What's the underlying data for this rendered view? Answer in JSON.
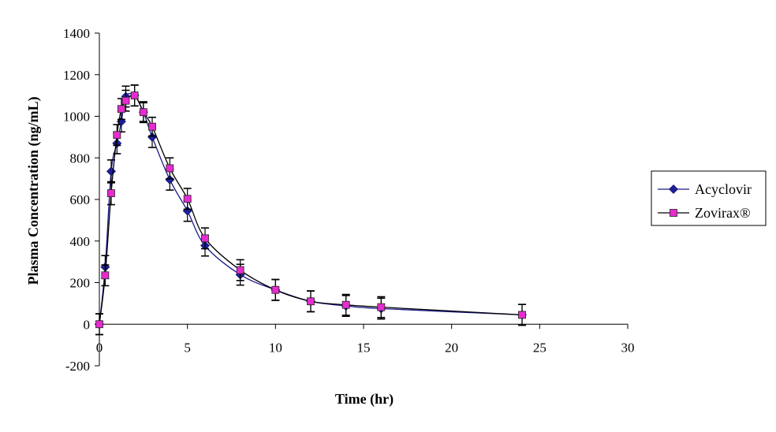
{
  "chart_data": {
    "type": "line",
    "title": "",
    "xlabel": "Time (hr)",
    "ylabel": "Plasma Concentration (ng/mL)",
    "xlim": [
      0,
      30
    ],
    "ylim": [
      -200,
      1400
    ],
    "x_ticks": [
      0,
      5,
      10,
      15,
      20,
      25,
      30
    ],
    "y_ticks": [
      -200,
      0,
      200,
      400,
      600,
      800,
      1000,
      1200,
      1400
    ],
    "grid": false,
    "legend_position": "right",
    "series": [
      {
        "name": "Acyclovir",
        "marker": "diamond",
        "color": "#1a1a8c",
        "marker_color": "#1f1f9a",
        "points": [
          {
            "x": 0,
            "y": 0,
            "err": 50
          },
          {
            "x": 0.33,
            "y": 275,
            "err": 55
          },
          {
            "x": 0.67,
            "y": 735,
            "err": 55
          },
          {
            "x": 1,
            "y": 870,
            "err": 50
          },
          {
            "x": 1.25,
            "y": 975,
            "err": 50
          },
          {
            "x": 1.5,
            "y": 1095,
            "err": 50
          },
          {
            "x": 2,
            "y": 1100,
            "err": 50
          },
          {
            "x": 2.5,
            "y": 1020,
            "err": 50
          },
          {
            "x": 3,
            "y": 900,
            "err": 50
          },
          {
            "x": 4,
            "y": 695,
            "err": 50
          },
          {
            "x": 5,
            "y": 545,
            "err": 50
          },
          {
            "x": 6,
            "y": 378,
            "err": 50
          },
          {
            "x": 8,
            "y": 238,
            "err": 50
          },
          {
            "x": 10,
            "y": 165,
            "err": 50
          },
          {
            "x": 12,
            "y": 110,
            "err": 50
          },
          {
            "x": 14,
            "y": 88,
            "err": 50
          },
          {
            "x": 16,
            "y": 75,
            "err": 50
          },
          {
            "x": 24,
            "y": 45,
            "err": 50
          }
        ]
      },
      {
        "name": "Zovirax®",
        "marker": "square",
        "color": "#000000",
        "marker_color": "#e62ccf",
        "points": [
          {
            "x": 0,
            "y": 0,
            "err": 50
          },
          {
            "x": 0.33,
            "y": 235,
            "err": 50
          },
          {
            "x": 0.67,
            "y": 630,
            "err": 55
          },
          {
            "x": 1,
            "y": 910,
            "err": 50
          },
          {
            "x": 1.25,
            "y": 1035,
            "err": 50
          },
          {
            "x": 1.5,
            "y": 1075,
            "err": 50
          },
          {
            "x": 2,
            "y": 1100,
            "err": 50
          },
          {
            "x": 2.5,
            "y": 1020,
            "err": 45
          },
          {
            "x": 3,
            "y": 950,
            "err": 45
          },
          {
            "x": 4,
            "y": 750,
            "err": 50
          },
          {
            "x": 5,
            "y": 603,
            "err": 50
          },
          {
            "x": 6,
            "y": 413,
            "err": 50
          },
          {
            "x": 8,
            "y": 260,
            "err": 50
          },
          {
            "x": 10,
            "y": 165,
            "err": 50
          },
          {
            "x": 12,
            "y": 110,
            "err": 50
          },
          {
            "x": 14,
            "y": 93,
            "err": 50
          },
          {
            "x": 16,
            "y": 82,
            "err": 50
          },
          {
            "x": 24,
            "y": 45,
            "err": 50
          }
        ]
      }
    ]
  }
}
